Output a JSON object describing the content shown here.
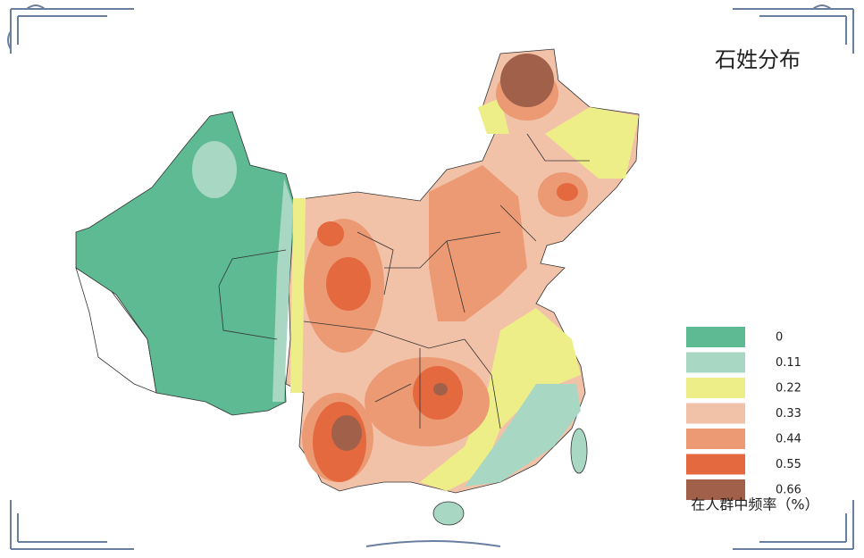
{
  "title": "石姓分布",
  "legend": {
    "items": [
      {
        "value": 0,
        "color": "#5dba93"
      },
      {
        "value": 0.11,
        "color": "#a8d8c4"
      },
      {
        "value": 0.22,
        "color": "#eeee88"
      },
      {
        "value": 0.33,
        "color": "#f2c2a8"
      },
      {
        "value": 0.44,
        "color": "#eb9a74"
      },
      {
        "value": 0.55,
        "color": "#e4693e"
      },
      {
        "value": 0.66,
        "color": "#a0604a"
      }
    ],
    "caption": "在人群中频率（%）"
  }
}
